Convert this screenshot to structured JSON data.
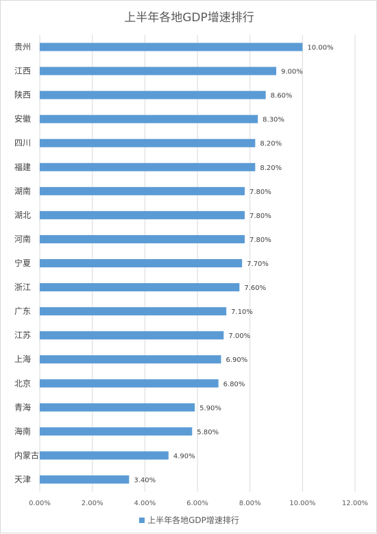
{
  "chart_data": {
    "type": "bar",
    "orientation": "horizontal",
    "title": "上半年各地GDP增速排行",
    "categories": [
      "贵州",
      "江西",
      "陕西",
      "安徽",
      "四川",
      "福建",
      "湖南",
      "湖北",
      "河南",
      "宁夏",
      "浙江",
      "广东",
      "江苏",
      "上海",
      "北京",
      "青海",
      "海南",
      "内蒙古",
      "天津"
    ],
    "series": [
      {
        "name": "上半年各地GDP增速排行",
        "values": [
          10.0,
          9.0,
          8.6,
          8.3,
          8.2,
          8.2,
          7.8,
          7.8,
          7.8,
          7.7,
          7.6,
          7.1,
          7.0,
          6.9,
          6.8,
          5.9,
          5.8,
          4.9,
          3.4
        ],
        "data_labels": [
          "10.00%",
          "9.00%",
          "8.60%",
          "8.30%",
          "8.20%",
          "8.20%",
          "7.80%",
          "7.80%",
          "7.80%",
          "7.70%",
          "7.60%",
          "7.10%",
          "7.00%",
          "6.90%",
          "6.80%",
          "5.90%",
          "5.80%",
          "4.90%",
          "3.40%"
        ]
      }
    ],
    "xlim": [
      0,
      12
    ],
    "xticks": [
      0,
      2,
      4,
      6,
      8,
      10,
      12
    ],
    "xtick_labels": [
      "0.00%",
      "2.00%",
      "4.00%",
      "6.00%",
      "8.00%",
      "10.00%",
      "12.00%"
    ],
    "grid": "vertical",
    "legend": "bottom",
    "bar_color": "#5B9BD5"
  }
}
